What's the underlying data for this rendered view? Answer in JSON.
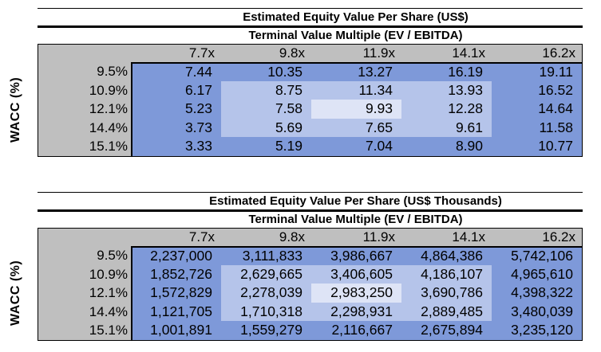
{
  "colors": {
    "page_background": "#FFFFFF",
    "header_fill": "#BFBFBF",
    "cell_fill": "#7E99D9",
    "cell_fill_inner": "#B5C4EA",
    "cell_fill_center": "#DEE4F6",
    "line": "#000000",
    "text": "#000000"
  },
  "chart_data": [
    {
      "type": "table",
      "title": "Estimated Equity Value Per Share (US$)",
      "col_axis_label": "Terminal Value Multiple (EV / EBITDA)",
      "row_axis_label": "WACC (%)",
      "columns": [
        "7.7x",
        "9.8x",
        "11.9x",
        "14.1x",
        "16.2x"
      ],
      "rows": [
        "9.5%",
        "10.9%",
        "12.1%",
        "14.4%",
        "15.1%"
      ],
      "values": [
        [
          "7.44",
          "10.35",
          "13.27",
          "16.19",
          "19.11"
        ],
        [
          "6.17",
          "8.75",
          "11.34",
          "13.93",
          "16.52"
        ],
        [
          "5.23",
          "7.58",
          "9.93",
          "12.28",
          "14.64"
        ],
        [
          "3.73",
          "5.69",
          "7.65",
          "9.61",
          "11.58"
        ],
        [
          "3.33",
          "5.19",
          "7.04",
          "8.90",
          "10.77"
        ]
      ],
      "highlight": {
        "inner_rows": [
          1,
          2,
          3
        ],
        "inner_cols": [
          1,
          2,
          3
        ],
        "center_cell": [
          2,
          2
        ]
      }
    },
    {
      "type": "table",
      "title": "Estimated Equity Value Per Share (US$ Thousands)",
      "col_axis_label": "Terminal Value Multiple (EV / EBITDA)",
      "row_axis_label": "WACC (%)",
      "columns": [
        "7.7x",
        "9.8x",
        "11.9x",
        "14.1x",
        "16.2x"
      ],
      "rows": [
        "9.5%",
        "10.9%",
        "12.1%",
        "14.4%",
        "15.1%"
      ],
      "values": [
        [
          "2,237,000",
          "3,111,833",
          "3,986,667",
          "4,864,386",
          "5,742,106"
        ],
        [
          "1,852,726",
          "2,629,665",
          "3,406,605",
          "4,186,107",
          "4,965,610"
        ],
        [
          "1,572,829",
          "2,278,039",
          "2,983,250",
          "3,690,786",
          "4,398,322"
        ],
        [
          "1,121,705",
          "1,710,318",
          "2,298,931",
          "2,889,485",
          "3,480,039"
        ],
        [
          "1,001,891",
          "1,559,279",
          "2,116,667",
          "2,675,894",
          "3,235,120"
        ]
      ],
      "highlight": {
        "inner_rows": [
          1,
          2,
          3
        ],
        "inner_cols": [
          1,
          2,
          3
        ],
        "center_cell": [
          2,
          2
        ]
      }
    }
  ]
}
